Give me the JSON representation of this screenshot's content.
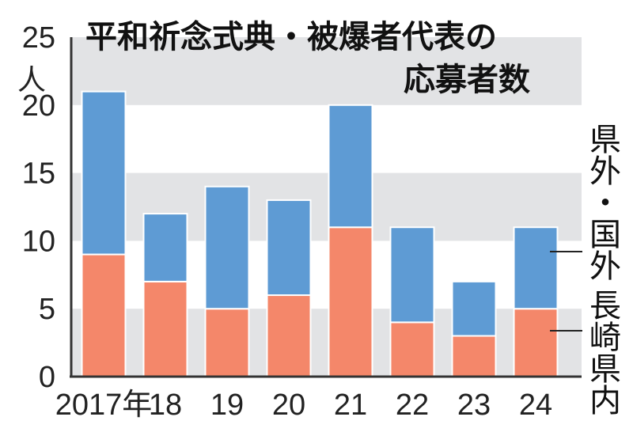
{
  "chart_data": {
    "type": "bar",
    "stacked": true,
    "title": "平和祈念式典・被爆者代表の応募者数",
    "title_lines": [
      "平和祈念式典・被爆者代表の",
      "応募者数"
    ],
    "unit_label": "人",
    "categories": [
      "2017年",
      "18",
      "19",
      "20",
      "21",
      "22",
      "23",
      "24"
    ],
    "series": [
      {
        "name": "長崎県内",
        "label_chars": [
          "長",
          "崎",
          "県",
          "内"
        ],
        "color": "#f4876a",
        "values": [
          9,
          7,
          5,
          6,
          11,
          4,
          3,
          5
        ]
      },
      {
        "name": "県外・国外",
        "label_chars": [
          "県",
          "外",
          "・",
          "国",
          "外"
        ],
        "color": "#5e9bd4",
        "values": [
          12,
          5,
          9,
          7,
          9,
          7,
          4,
          6
        ]
      }
    ],
    "ylim": [
      0,
      25
    ],
    "yticks": [
      "0",
      "5",
      "10",
      "15",
      "20",
      "25"
    ],
    "band_color": "#e2e3e5",
    "grid": "alternating horizontal bands",
    "legend": "right, stacked vertically with leader lines"
  }
}
